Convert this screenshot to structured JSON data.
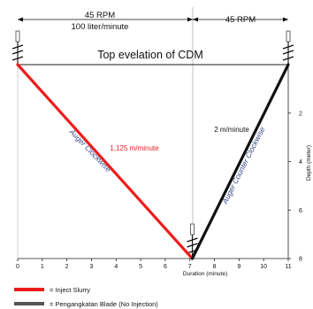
{
  "header": {
    "left_speed": "45 RPM",
    "left_flow": "100 liter/minute",
    "right_speed": "45 RPM",
    "title": "Top evelation of CDM"
  },
  "annotations": {
    "down_rate": "1,125 m/minute",
    "up_rate": "2 m/minute",
    "down_label": "Auger Clockwise",
    "up_label": "Auger Counter Clockwise"
  },
  "legend": [
    {
      "label": "= Inject Slurry",
      "color": "#ee1c1c"
    },
    {
      "label": "= Pengangkatan Blade (No Injection)",
      "color": "#555555"
    }
  ],
  "chart_data": {
    "type": "line",
    "xlabel": "Duration (minute)",
    "ylabel": "Depth (meter)",
    "x_ticks": [
      "0",
      "1",
      "2",
      "3",
      "4",
      "5",
      "6",
      "7",
      "8",
      "9",
      "10",
      "11"
    ],
    "y_ticks": [
      "2",
      "4",
      "6",
      "8"
    ],
    "xlim": [
      0,
      11
    ],
    "ylim": [
      0,
      8
    ],
    "y_inverted": true,
    "series": [
      {
        "points": [
          {
            "x": 0,
            "y": 0
          },
          {
            "x": 7.1,
            "y": 8
          }
        ],
        "color": "#ee1c1c"
      },
      {
        "points": [
          {
            "x": 7.1,
            "y": 8
          },
          {
            "x": 11,
            "y": 0
          }
        ],
        "color": "#111111"
      }
    ]
  }
}
